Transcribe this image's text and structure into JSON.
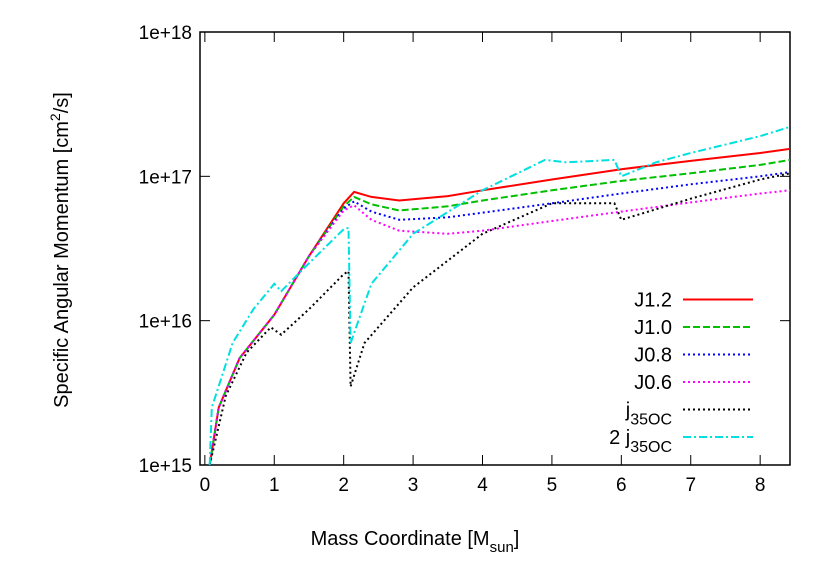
{
  "chart_data": {
    "type": "line",
    "xlabel": [
      "Mass Coordinate [M",
      "sun",
      "]"
    ],
    "ylabel": [
      "Specific Angular Momentum [cm",
      "2",
      "/s]"
    ],
    "xlim": [
      -0.07,
      8.43
    ],
    "ylim": [
      1000000000000000.0,
      1e+18
    ],
    "log_y": true,
    "grid": false,
    "legend": "lower right",
    "xticks": [
      0,
      1,
      2,
      3,
      4,
      5,
      6,
      7,
      8
    ],
    "yticks": [
      {
        "value": 1000000000000000.0,
        "label": "1e+15"
      },
      {
        "value": 1e+16,
        "label": "1e+16"
      },
      {
        "value": 1e+17,
        "label": "1e+17"
      },
      {
        "value": 1e+18,
        "label": "1e+18"
      }
    ],
    "series": [
      {
        "name": [
          "J1.2"
        ],
        "color": "#ff0000",
        "dash": "solid",
        "x": [
          0.07,
          0.2,
          0.5,
          1.0,
          1.5,
          2.0,
          2.15,
          2.4,
          2.8,
          3.5,
          4,
          5,
          6,
          7,
          8,
          8.43
        ],
        "values": [
          1000000000000000.0,
          2500000000000000.0,
          5500000000000000.0,
          1.1e+16,
          2.8e+16,
          6.5e+16,
          7.8e+16,
          7.2e+16,
          6.8e+16,
          7.3e+16,
          8e+16,
          9.5e+16,
          1.12e+17,
          1.28e+17,
          1.45e+17,
          1.55e+17
        ]
      },
      {
        "name": [
          "J1.0"
        ],
        "color": "#00c000",
        "dash": "dashed",
        "x": [
          0.07,
          0.2,
          0.5,
          1.0,
          1.5,
          2.0,
          2.15,
          2.4,
          2.8,
          3.5,
          4,
          5,
          6,
          7,
          8,
          8.43
        ],
        "values": [
          1000000000000000.0,
          2500000000000000.0,
          5500000000000000.0,
          1.1e+16,
          2.8e+16,
          6.2e+16,
          7.2e+16,
          6.4e+16,
          5.8e+16,
          6.2e+16,
          6.8e+16,
          8e+16,
          9.3e+16,
          1.05e+17,
          1.2e+17,
          1.3e+17
        ]
      },
      {
        "name": [
          "J0.8"
        ],
        "color": "#0000ff",
        "dash": "dotted",
        "x": [
          0.07,
          0.2,
          0.5,
          1.0,
          1.5,
          2.0,
          2.15,
          2.4,
          2.8,
          3.5,
          4,
          5,
          6,
          7,
          8,
          8.43
        ],
        "values": [
          1000000000000000.0,
          2500000000000000.0,
          5500000000000000.0,
          1.1e+16,
          2.8e+16,
          6e+16,
          6.7e+16,
          5.7e+16,
          5e+16,
          5.2e+16,
          5.6e+16,
          6.5e+16,
          7.6e+16,
          8.8e+16,
          1e+17,
          1.07e+17
        ]
      },
      {
        "name": [
          "J0.6"
        ],
        "color": "#ff00ff",
        "dash": "dotted",
        "x": [
          0.07,
          0.2,
          0.5,
          1.0,
          1.5,
          2.0,
          2.15,
          2.4,
          2.8,
          3.5,
          4,
          5,
          6,
          7,
          8,
          8.43
        ],
        "values": [
          1000000000000000.0,
          2500000000000000.0,
          5500000000000000.0,
          1.1e+16,
          2.8e+16,
          5.8e+16,
          6.3e+16,
          5e+16,
          4.2e+16,
          4e+16,
          4.2e+16,
          4.9e+16,
          5.7e+16,
          6.6e+16,
          7.6e+16,
          8e+16
        ]
      },
      {
        "name": [
          "j",
          "35OC"
        ],
        "color": "#000000",
        "dash": "dotted",
        "x": [
          0.07,
          0.3,
          0.6,
          0.95,
          1.1,
          1.5,
          2.0,
          2.07,
          2.1,
          2.3,
          3,
          4,
          5,
          5.9,
          6.0,
          7,
          8,
          8.43
        ],
        "values": [
          1000000000000000.0,
          3000000000000000.0,
          6000000000000000.0,
          9000000000000000.0,
          8000000000000000.0,
          1.2e+16,
          2.1e+16,
          2.2e+16,
          3500000000000000.0,
          7000000000000000.0,
          1.7e+16,
          4e+16,
          6.5e+16,
          6.5e+16,
          5e+16,
          7e+16,
          9.5e+16,
          1.05e+17
        ]
      },
      {
        "name": [
          "2 j",
          "35OC"
        ],
        "color": "#00e0e0",
        "dash": "dashdot",
        "x": [
          0.07,
          0.1,
          0.4,
          0.7,
          1.0,
          1.1,
          1.5,
          2.0,
          2.07,
          2.1,
          2.4,
          3,
          4,
          4.9,
          5.2,
          5.9,
          6.0,
          6.5,
          7,
          8,
          8.43
        ],
        "values": [
          1000000000000000.0,
          2500000000000000.0,
          7000000000000000.0,
          1.2e+16,
          1.8e+16,
          1.6e+16,
          2.5e+16,
          4.3e+16,
          4.4e+16,
          7000000000000000.0,
          1.8e+16,
          4e+16,
          8e+16,
          1.3e+17,
          1.25e+17,
          1.3e+17,
          1e+17,
          1.25e+17,
          1.45e+17,
          1.9e+17,
          2.2e+17
        ]
      }
    ]
  }
}
